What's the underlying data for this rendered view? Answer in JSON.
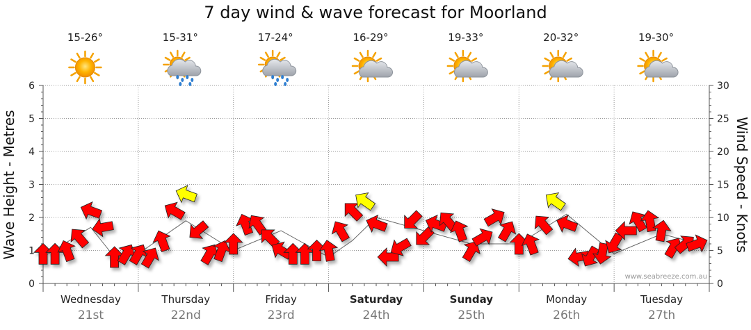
{
  "chart_data": {
    "type": "line",
    "title": "7 day wind & wave forecast for Moorland",
    "ylabel_left": "Wave Height - Metres",
    "ylabel_right": "Wind Speed - Knots",
    "y_left_ticks": [
      "0",
      "1",
      "2",
      "3",
      "4",
      "5",
      "6"
    ],
    "y_right_ticks": [
      "0",
      "5",
      "10",
      "15",
      "20",
      "25",
      "30"
    ],
    "ylim_left": [
      0,
      6
    ],
    "ylim_right": [
      0,
      30
    ],
    "watermark": "www.seabreeze.com.au",
    "days": [
      {
        "name": "Wednesday",
        "date": "21st",
        "temp": "15-26°",
        "weather": "sunny-icon",
        "bold": false
      },
      {
        "name": "Thursday",
        "date": "22nd",
        "temp": "15-31°",
        "weather": "rain-icon",
        "bold": false
      },
      {
        "name": "Friday",
        "date": "23rd",
        "temp": "17-24°",
        "weather": "rain-icon",
        "bold": false
      },
      {
        "name": "Saturday",
        "date": "24th",
        "temp": "16-29°",
        "weather": "partly-cloudy-icon",
        "bold": true
      },
      {
        "name": "Sunday",
        "date": "25th",
        "temp": "19-33°",
        "weather": "partly-cloudy-icon",
        "bold": true
      },
      {
        "name": "Monday",
        "date": "26th",
        "temp": "20-32°",
        "weather": "partly-cloudy-icon",
        "bold": false
      },
      {
        "name": "Tuesday",
        "date": "27th",
        "temp": "19-30°",
        "weather": "partly-cloudy-icon",
        "bold": false
      }
    ],
    "colors": {
      "onshore": "#ff0000",
      "offshore": "#ffff00",
      "grid": "#9a9a9a",
      "wave_line": "#666666"
    },
    "wind_series": {
      "name": "Wind speed (knots)",
      "x_days": [
        0.0,
        0.125,
        0.25,
        0.375,
        0.5,
        0.625,
        0.75,
        0.875,
        1.0,
        1.125,
        1.25,
        1.375,
        1.5,
        1.625,
        1.75,
        1.875,
        2.0,
        2.125,
        2.25,
        2.375,
        2.5,
        2.625,
        2.75,
        2.875,
        3.0,
        3.125,
        3.25,
        3.375,
        3.5,
        3.625,
        3.75,
        3.875,
        4.0,
        4.125,
        4.25,
        4.375,
        4.5,
        4.625,
        4.75,
        4.875,
        5.0,
        5.125,
        5.25,
        5.375,
        5.5,
        5.625,
        5.75,
        5.875,
        6.0,
        6.125,
        6.25,
        6.375,
        6.5,
        6.625,
        6.75,
        6.875
      ],
      "values": [
        4.5,
        4.5,
        5,
        7,
        11,
        8.5,
        4,
        4.5,
        4.5,
        4,
        6.5,
        11,
        13.5,
        8,
        4.5,
        5,
        6,
        9,
        9,
        7,
        5,
        4.5,
        4.5,
        5,
        5,
        8,
        11,
        12.5,
        9,
        4,
        5.5,
        9.5,
        7,
        9,
        9.5,
        8,
        5,
        7,
        10,
        8,
        6,
        6,
        9,
        12.5,
        9,
        4,
        4,
        4.5,
        6,
        8,
        9.5,
        9.5,
        8,
        5.5,
        6,
        6
      ],
      "direction_deg": [
        270,
        270,
        250,
        230,
        200,
        170,
        270,
        300,
        300,
        300,
        250,
        210,
        200,
        140,
        300,
        290,
        270,
        250,
        235,
        225,
        210,
        270,
        270,
        270,
        260,
        240,
        225,
        215,
        200,
        180,
        150,
        135,
        135,
        200,
        230,
        250,
        300,
        330,
        330,
        300,
        270,
        250,
        230,
        215,
        200,
        170,
        120,
        100,
        120,
        180,
        240,
        260,
        280,
        300,
        320,
        340
      ],
      "offshore": [
        false,
        false,
        false,
        false,
        false,
        false,
        false,
        false,
        false,
        false,
        false,
        false,
        true,
        false,
        false,
        false,
        false,
        false,
        false,
        false,
        false,
        false,
        false,
        false,
        false,
        false,
        false,
        true,
        false,
        false,
        false,
        false,
        false,
        false,
        false,
        false,
        false,
        false,
        false,
        false,
        false,
        false,
        false,
        true,
        false,
        false,
        false,
        false,
        false,
        false,
        false,
        false,
        false,
        false,
        false,
        false
      ]
    },
    "wave_series": {
      "name": "Wave height (metres)",
      "x_days": [
        0.0,
        0.5,
        0.75,
        1.0,
        1.5,
        2.0,
        2.5,
        3.0,
        3.25,
        3.5,
        4.0,
        4.5,
        5.0,
        5.5,
        6.0,
        6.5,
        6.9
      ],
      "values": [
        0.8,
        1.7,
        0.8,
        0.9,
        1.9,
        1.0,
        1.6,
        0.8,
        1.3,
        2.0,
        1.6,
        1.2,
        1.2,
        2.1,
        0.9,
        1.5,
        1.2
      ]
    }
  }
}
